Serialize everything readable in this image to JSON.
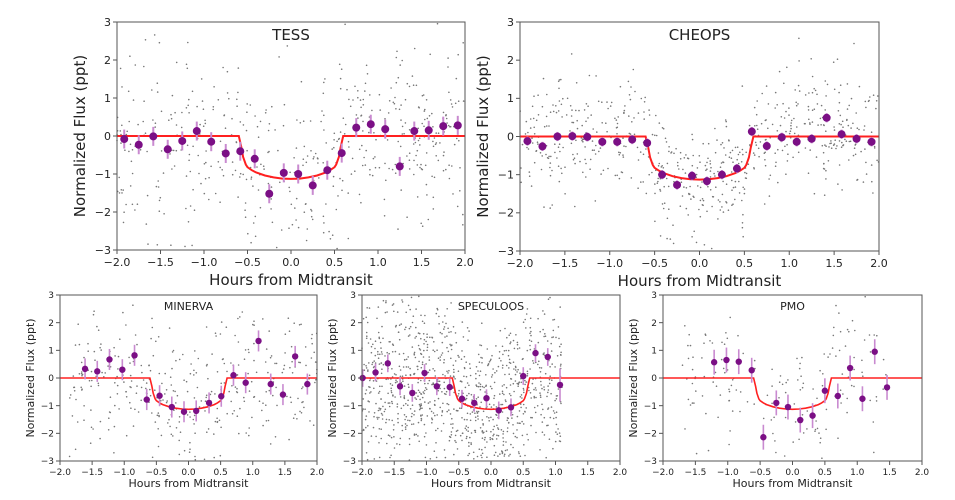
{
  "colors": {
    "model": "#ff2020",
    "binned": "#7b0f85",
    "errorbar": "#c98ad0",
    "raw": "#777777",
    "axis": "#555555"
  },
  "chart_data": [
    {
      "type": "scatter",
      "title": "TESS",
      "xlabel": "Hours from Midtransit",
      "ylabel": "Normalized Flux (ppt)",
      "xlim": [
        -2,
        2
      ],
      "ylim": [
        -3,
        3
      ],
      "xticks": [
        "−2.0",
        "−1.5",
        "−1.0",
        "−0.5",
        "0.0",
        "0.5",
        "1.0",
        "1.5",
        "2.0"
      ],
      "yticks": [
        "−3",
        "−2",
        "−1",
        "0",
        "1",
        "2",
        "3"
      ],
      "binned": {
        "x": [
          -1.917,
          -1.75,
          -1.583,
          -1.417,
          -1.25,
          -1.083,
          -0.917,
          -0.75,
          -0.583,
          -0.417,
          -0.25,
          -0.083,
          0.083,
          0.25,
          0.417,
          0.583,
          0.75,
          0.917,
          1.083,
          1.25,
          1.417,
          1.583,
          1.75,
          1.917
        ],
        "y": [
          -0.08,
          -0.23,
          -0.01,
          -0.35,
          -0.13,
          0.13,
          -0.15,
          -0.46,
          -0.4,
          -0.6,
          -1.52,
          -0.97,
          -1.0,
          -1.3,
          -0.9,
          -0.45,
          0.22,
          0.31,
          0.18,
          -0.8,
          0.13,
          0.15,
          0.26,
          0.28
        ],
        "yerr": 0.25
      }
    },
    {
      "type": "scatter",
      "title": "CHEOPS",
      "xlabel": "Hours from Midtransit",
      "ylabel": "Normalized Flux (ppt)",
      "xlim": [
        -2,
        2
      ],
      "ylim": [
        -3,
        3
      ],
      "xticks": [
        "−2.0",
        "−1.5",
        "−1.0",
        "−0.5",
        "0.0",
        "0.5",
        "1.0",
        "1.5",
        "2.0"
      ],
      "yticks": [
        "−3",
        "−2",
        "−1",
        "0",
        "1",
        "2",
        "3"
      ],
      "binned": {
        "x": [
          -1.917,
          -1.75,
          -1.583,
          -1.417,
          -1.25,
          -1.083,
          -0.917,
          -0.75,
          -0.583,
          -0.417,
          -0.25,
          -0.083,
          0.083,
          0.25,
          0.417,
          0.583,
          0.75,
          0.917,
          1.083,
          1.25,
          1.417,
          1.583,
          1.75,
          1.917
        ],
        "y": [
          -0.12,
          -0.26,
          0.0,
          0.01,
          -0.01,
          -0.14,
          -0.14,
          -0.08,
          -0.17,
          -1.0,
          -1.27,
          -1.03,
          -1.17,
          -1.0,
          -0.84,
          0.13,
          -0.25,
          -0.02,
          -0.14,
          -0.06,
          0.49,
          0.06,
          -0.06,
          -0.14
        ],
        "yerr": 0.12
      }
    },
    {
      "type": "scatter",
      "title": "MINERVA",
      "xlabel": "Hours from Midtransit",
      "ylabel": "Normalized Flux (ppt)",
      "xlim": [
        -2,
        2
      ],
      "ylim": [
        -3,
        3
      ],
      "xticks": [
        "−2.0",
        "−1.5",
        "−1.0",
        "−0.5",
        "0.0",
        "0.5",
        "1.0",
        "1.5",
        "2.0"
      ],
      "yticks": [
        "−3",
        "−2",
        "−1",
        "0",
        "1",
        "2",
        "3"
      ],
      "binned": {
        "x": [
          -1.61,
          -1.42,
          -1.23,
          -1.03,
          -0.84,
          -0.65,
          -0.45,
          -0.26,
          -0.07,
          0.12,
          0.32,
          0.51,
          0.7,
          0.89,
          1.09,
          1.28,
          1.47,
          1.66,
          1.85
        ],
        "y": [
          0.33,
          0.24,
          0.67,
          0.3,
          0.82,
          -0.78,
          -0.64,
          -1.05,
          -1.22,
          -1.19,
          -0.9,
          -0.66,
          0.1,
          -0.17,
          1.34,
          -0.22,
          -0.6,
          0.78,
          -0.22
        ],
        "yerr": 0.38
      }
    },
    {
      "type": "scatter",
      "title": "SPECULOOS",
      "xlabel": "Hours from Midtransit",
      "ylabel": "Normalized Flux (ppt)",
      "xlim": [
        -2,
        2
      ],
      "ylim": [
        -3,
        3
      ],
      "xticks": [
        "−2.0",
        "−1.5",
        "−1.0",
        "−0.5",
        "0.0",
        "0.5",
        "1.0",
        "1.5",
        "2.0"
      ],
      "yticks": [
        "−3",
        "−2",
        "−1",
        "0",
        "1",
        "2",
        "3"
      ],
      "binned": {
        "x": [
          -1.99,
          -1.79,
          -1.6,
          -1.41,
          -1.22,
          -1.03,
          -0.84,
          -0.64,
          -0.45,
          -0.26,
          -0.07,
          0.12,
          0.31,
          0.5,
          0.69,
          0.88,
          1.07
        ],
        "y": [
          0.0,
          0.2,
          0.53,
          -0.3,
          -0.54,
          0.18,
          -0.3,
          -0.33,
          -0.75,
          -0.9,
          -0.73,
          -1.17,
          -1.06,
          0.07,
          0.9,
          0.76,
          -0.25
        ],
        "yerr": 0.32
      }
    },
    {
      "type": "scatter",
      "title": "PMO",
      "xlabel": "Hours from Midtransit",
      "ylabel": "Normalized Flux (ppt)",
      "xlim": [
        -2,
        2
      ],
      "ylim": [
        -3,
        3
      ],
      "xticks": [
        "−2.0",
        "−1.5",
        "−1.0",
        "−0.5",
        "0.0",
        "0.5",
        "1.0",
        "1.5",
        "2.0"
      ],
      "yticks": [
        "−3",
        "−2",
        "−1",
        "0",
        "1",
        "2",
        "3"
      ],
      "binned": {
        "x": [
          -1.21,
          -1.02,
          -0.83,
          -0.63,
          -0.45,
          -0.25,
          -0.07,
          0.12,
          0.31,
          0.5,
          0.7,
          0.89,
          1.08,
          1.27,
          1.46
        ],
        "y": [
          0.57,
          0.65,
          0.59,
          0.28,
          -2.14,
          -0.9,
          -1.05,
          -1.52,
          -1.36,
          -0.46,
          -0.65,
          0.36,
          -0.75,
          0.95,
          -0.34
        ],
        "yerr": 0.45
      }
    }
  ],
  "model": {
    "x": [
      -2,
      -0.6,
      -0.57,
      -0.55,
      -0.52,
      -0.5,
      -0.45,
      -0.4,
      -0.3,
      -0.2,
      -0.1,
      0,
      0.1,
      0.2,
      0.3,
      0.4,
      0.45,
      0.5,
      0.52,
      0.55,
      0.57,
      0.6,
      2
    ],
    "y": [
      0,
      0,
      -0.3,
      -0.55,
      -0.75,
      -0.82,
      -0.9,
      -0.96,
      -1.04,
      -1.09,
      -1.12,
      -1.13,
      -1.12,
      -1.09,
      -1.04,
      -0.96,
      -0.9,
      -0.82,
      -0.75,
      -0.55,
      -0.3,
      0,
      0
    ]
  }
}
